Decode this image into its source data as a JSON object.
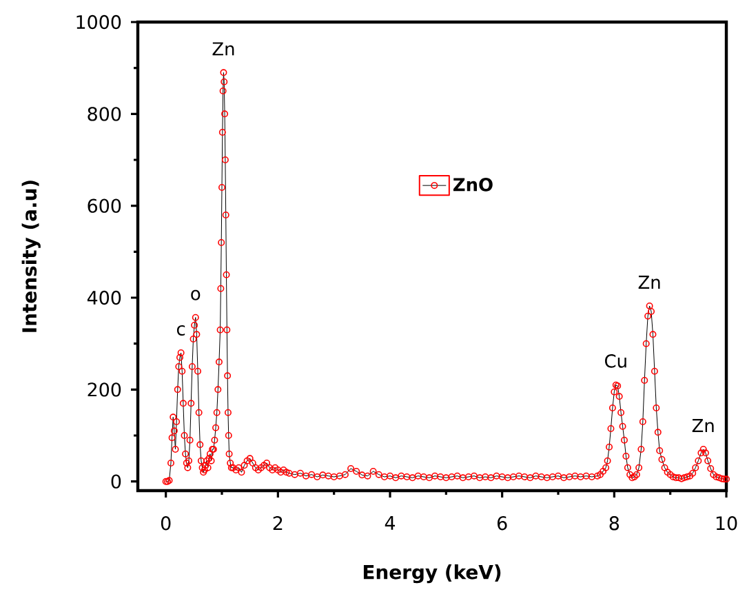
{
  "chart_data": {
    "type": "line",
    "xlabel": "Energy (keV)",
    "ylabel": "Intensity (a.u)",
    "xlim": [
      -0.5,
      10
    ],
    "ylim": [
      -20,
      1000
    ],
    "xticks": [
      0,
      {
        "value": 1,
        "label": null
      },
      2,
      {
        "value": 3,
        "label": null
      },
      4,
      {
        "value": 5,
        "label": null
      },
      6,
      {
        "value": 7,
        "label": null
      },
      8,
      {
        "value": 9,
        "label": null
      },
      10
    ],
    "yticks": [
      0,
      {
        "value": 100,
        "label": null
      },
      200,
      {
        "value": 300,
        "label": null
      },
      400,
      {
        "value": 500,
        "label": null
      },
      600,
      {
        "value": 700,
        "label": null
      },
      800,
      {
        "value": 900,
        "label": null
      },
      1000
    ],
    "legend": "top",
    "marker": "circle",
    "line_style": "solid",
    "series": [
      {
        "name": "ZnO",
        "color": "#ff0000",
        "x": [
          0,
          0.03,
          0.06,
          0.09,
          0.11,
          0.13,
          0.15,
          0.17,
          0.19,
          0.21,
          0.23,
          0.25,
          0.27,
          0.29,
          0.31,
          0.33,
          0.35,
          0.37,
          0.39,
          0.41,
          0.43,
          0.45,
          0.47,
          0.49,
          0.51,
          0.53,
          0.55,
          0.57,
          0.59,
          0.61,
          0.63,
          0.65,
          0.67,
          0.69,
          0.71,
          0.73,
          0.75,
          0.77,
          0.79,
          0.81,
          0.83,
          0.85,
          0.87,
          0.89,
          0.91,
          0.93,
          0.95,
          0.97,
          0.98,
          0.99,
          1.0,
          1.01,
          1.02,
          1.03,
          1.04,
          1.05,
          1.06,
          1.07,
          1.08,
          1.09,
          1.1,
          1.11,
          1.12,
          1.13,
          1.15,
          1.17,
          1.2,
          1.25,
          1.3,
          1.35,
          1.4,
          1.45,
          1.5,
          1.55,
          1.6,
          1.65,
          1.7,
          1.75,
          1.8,
          1.85,
          1.9,
          1.95,
          2.0,
          2.05,
          2.1,
          2.15,
          2.2,
          2.3,
          2.4,
          2.5,
          2.6,
          2.7,
          2.8,
          2.9,
          3.0,
          3.1,
          3.2,
          3.3,
          3.4,
          3.5,
          3.6,
          3.7,
          3.8,
          3.9,
          4.0,
          4.1,
          4.2,
          4.3,
          4.4,
          4.5,
          4.6,
          4.7,
          4.8,
          4.9,
          5.0,
          5.1,
          5.2,
          5.3,
          5.4,
          5.5,
          5.6,
          5.7,
          5.8,
          5.9,
          6.0,
          6.1,
          6.2,
          6.3,
          6.4,
          6.5,
          6.6,
          6.7,
          6.8,
          6.9,
          7.0,
          7.1,
          7.2,
          7.3,
          7.4,
          7.5,
          7.6,
          7.7,
          7.75,
          7.8,
          7.85,
          7.88,
          7.91,
          7.94,
          7.97,
          8.0,
          8.03,
          8.06,
          8.09,
          8.12,
          8.15,
          8.18,
          8.21,
          8.24,
          8.28,
          8.32,
          8.36,
          8.4,
          8.44,
          8.48,
          8.51,
          8.54,
          8.57,
          8.6,
          8.63,
          8.66,
          8.69,
          8.72,
          8.75,
          8.78,
          8.81,
          8.85,
          8.9,
          8.95,
          9.0,
          9.05,
          9.1,
          9.15,
          9.2,
          9.25,
          9.3,
          9.35,
          9.4,
          9.45,
          9.5,
          9.55,
          9.59,
          9.63,
          9.67,
          9.72,
          9.77,
          9.82,
          9.87,
          9.92,
          9.96,
          10.0
        ],
        "values": [
          0,
          0,
          2,
          40,
          95,
          140,
          110,
          70,
          130,
          200,
          250,
          270,
          280,
          240,
          170,
          100,
          60,
          40,
          30,
          45,
          90,
          170,
          250,
          310,
          340,
          357,
          320,
          240,
          150,
          80,
          45,
          30,
          20,
          25,
          35,
          45,
          30,
          50,
          60,
          45,
          70,
          70,
          90,
          117,
          150,
          200,
          260,
          330,
          420,
          520,
          640,
          760,
          850,
          890,
          870,
          800,
          700,
          580,
          450,
          330,
          230,
          150,
          100,
          60,
          40,
          30,
          30,
          25,
          30,
          20,
          35,
          45,
          50,
          40,
          30,
          25,
          30,
          35,
          40,
          30,
          25,
          30,
          25,
          20,
          25,
          20,
          18,
          15,
          18,
          12,
          15,
          10,
          14,
          12,
          10,
          12,
          15,
          28,
          22,
          14,
          12,
          22,
          15,
          10,
          12,
          8,
          12,
          10,
          8,
          12,
          10,
          8,
          12,
          10,
          8,
          10,
          12,
          8,
          10,
          12,
          8,
          10,
          8,
          12,
          10,
          8,
          10,
          12,
          10,
          8,
          12,
          10,
          8,
          10,
          12,
          8,
          10,
          12,
          10,
          12,
          10,
          12,
          15,
          22,
          30,
          45,
          75,
          115,
          160,
          195,
          210,
          208,
          185,
          150,
          120,
          90,
          55,
          30,
          15,
          8,
          10,
          15,
          30,
          70,
          130,
          220,
          300,
          360,
          382,
          370,
          320,
          240,
          160,
          107,
          67,
          48,
          30,
          20,
          15,
          10,
          8,
          8,
          6,
          8,
          10,
          12,
          18,
          30,
          45,
          62,
          70,
          62,
          45,
          28,
          15,
          10,
          8,
          6,
          5,
          5
        ]
      }
    ],
    "annotations": [
      {
        "text": "c",
        "x": 0.27,
        "y": 280
      },
      {
        "text": "o",
        "x": 0.53,
        "y": 357
      },
      {
        "text": "Zn",
        "x": 1.03,
        "y": 890
      },
      {
        "text": "Cu",
        "x": 8.03,
        "y": 210
      },
      {
        "text": "Zn",
        "x": 8.63,
        "y": 382
      },
      {
        "text": "Zn",
        "x": 9.59,
        "y": 70
      }
    ]
  }
}
